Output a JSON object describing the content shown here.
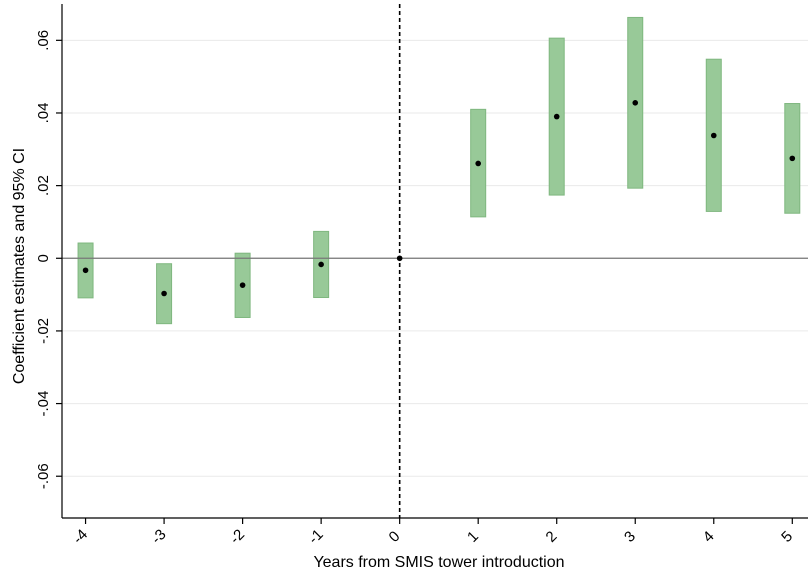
{
  "chart_data": {
    "type": "scatter",
    "xlabel": "Years from SMIS tower introduction",
    "ylabel": "Coefficient estimates and 95% CI",
    "x_ticks": [
      {
        "value": -4,
        "label": "-4"
      },
      {
        "value": -3,
        "label": "-3"
      },
      {
        "value": -2,
        "label": "-2"
      },
      {
        "value": -1,
        "label": "-1"
      },
      {
        "value": 0,
        "label": "0"
      },
      {
        "value": 1,
        "label": "1"
      },
      {
        "value": 2,
        "label": "2"
      },
      {
        "value": 3,
        "label": "3"
      },
      {
        "value": 4,
        "label": "4"
      },
      {
        "value": 5,
        "label": "5"
      }
    ],
    "y_ticks": [
      {
        "value": -0.06,
        "label": "-.06"
      },
      {
        "value": -0.04,
        "label": "-.04"
      },
      {
        "value": -0.02,
        "label": "-.02"
      },
      {
        "value": 0,
        "label": "0"
      },
      {
        "value": 0.02,
        "label": ".02"
      },
      {
        "value": 0.04,
        "label": ".04"
      },
      {
        "value": 0.06,
        "label": ".06"
      }
    ],
    "xlim": [
      -4.3,
      5.2
    ],
    "ylim": [
      -0.0715,
      0.07
    ],
    "grid": true,
    "reference_lines": {
      "horizontal_at": 0,
      "vertical_at": 0
    },
    "ci_color": "#98c998",
    "ci_border": "#7fb77f",
    "point_color": "#000000",
    "estimates": [
      {
        "x": -4,
        "estimate": -0.0033,
        "ci_low": -0.0109,
        "ci_high": 0.0042
      },
      {
        "x": -3,
        "estimate": -0.0097,
        "ci_low": -0.018,
        "ci_high": -0.0015
      },
      {
        "x": -2,
        "estimate": -0.0074,
        "ci_low": -0.0163,
        "ci_high": 0.0014
      },
      {
        "x": -1,
        "estimate": -0.0017,
        "ci_low": -0.0108,
        "ci_high": 0.0074
      },
      {
        "x": 0,
        "estimate": 0.0,
        "ci_low": 0.0,
        "ci_high": 0.0
      },
      {
        "x": 1,
        "estimate": 0.0261,
        "ci_low": 0.0114,
        "ci_high": 0.041
      },
      {
        "x": 2,
        "estimate": 0.039,
        "ci_low": 0.0174,
        "ci_high": 0.0606
      },
      {
        "x": 3,
        "estimate": 0.0428,
        "ci_low": 0.0193,
        "ci_high": 0.0663
      },
      {
        "x": 4,
        "estimate": 0.0338,
        "ci_low": 0.0129,
        "ci_high": 0.0548
      },
      {
        "x": 5,
        "estimate": 0.0275,
        "ci_low": 0.0124,
        "ci_high": 0.0426
      }
    ]
  }
}
